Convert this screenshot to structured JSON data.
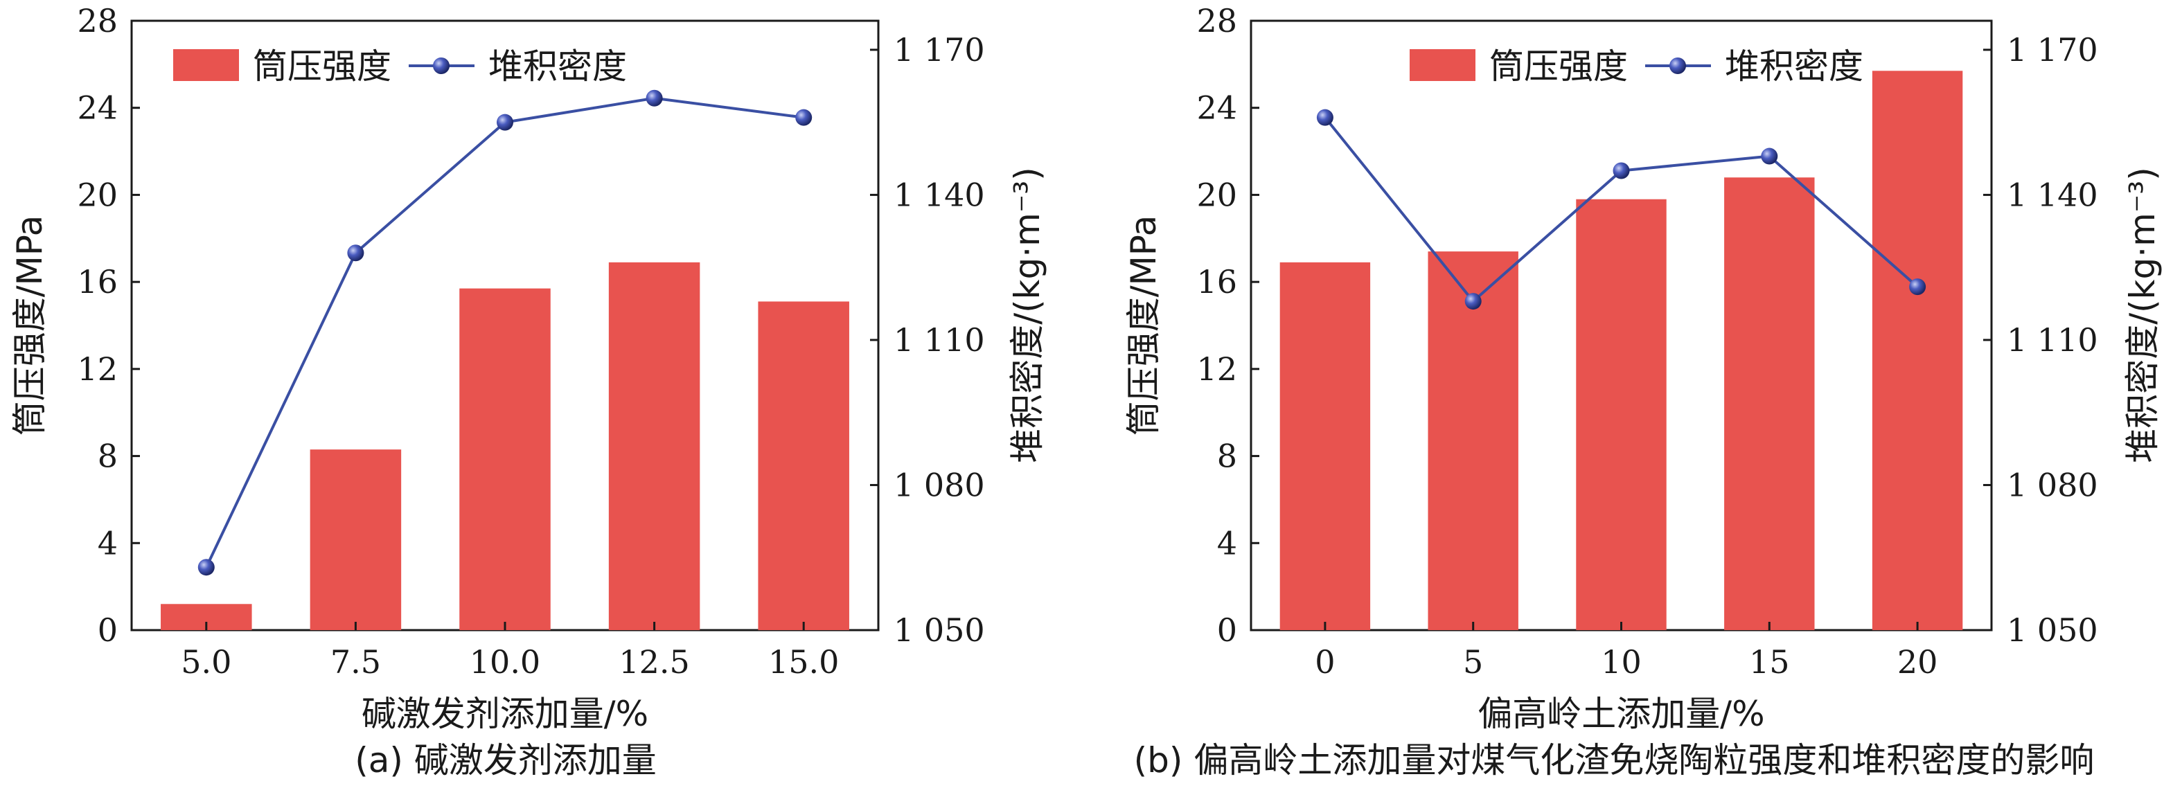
{
  "chart_data": [
    {
      "type": "bar",
      "caption": "(a) 碱激发剂添加量",
      "xlabel": "碱激发剂添加量/%",
      "ylabel": "筒压强度/MPa",
      "y2label": "堆积密度/(kg·m⁻³)",
      "categories": [
        "5.0",
        "7.5",
        "10.0",
        "12.5",
        "15.0"
      ],
      "ylim": [
        0,
        28
      ],
      "yticks": [
        "0",
        "4",
        "8",
        "12",
        "16",
        "20",
        "24",
        "28"
      ],
      "y2lim": [
        1050,
        1176
      ],
      "y2ticks": [
        "1 050",
        "1 080",
        "1 110",
        "1 140",
        "1 170"
      ],
      "legend_position": "top-left",
      "series": [
        {
          "name": "筒压强度",
          "kind": "bar",
          "axis": "left",
          "color": "#e8534f",
          "values": [
            1.2,
            8.3,
            15.7,
            16.9,
            15.1
          ]
        },
        {
          "name": "堆积密度",
          "kind": "line",
          "axis": "right",
          "color": "#3a4fa3",
          "values": [
            1063,
            1128,
            1155,
            1160,
            1156
          ]
        }
      ]
    },
    {
      "type": "bar",
      "caption": "(b) 偏高岭土添加量对煤气化渣免烧陶粒强度和堆积密度的影响",
      "xlabel": "偏高岭土添加量/%",
      "ylabel": "筒压强度/MPa",
      "y2label": "堆积密度/(kg·m⁻³)",
      "categories": [
        "0",
        "5",
        "10",
        "15",
        "20"
      ],
      "ylim": [
        0,
        28
      ],
      "yticks": [
        "0",
        "4",
        "8",
        "12",
        "16",
        "20",
        "24",
        "28"
      ],
      "y2lim": [
        1050,
        1176
      ],
      "y2ticks": [
        "1 050",
        "1 080",
        "1 110",
        "1 140",
        "1 170"
      ],
      "legend_position": "top-center",
      "series": [
        {
          "name": "筒压强度",
          "kind": "bar",
          "axis": "left",
          "color": "#e8534f",
          "values": [
            16.9,
            17.4,
            19.8,
            20.8,
            25.7
          ]
        },
        {
          "name": "堆积密度",
          "kind": "line",
          "axis": "right",
          "color": "#3a4fa3",
          "values": [
            1156,
            1118,
            1145,
            1148,
            1121
          ]
        }
      ]
    }
  ]
}
